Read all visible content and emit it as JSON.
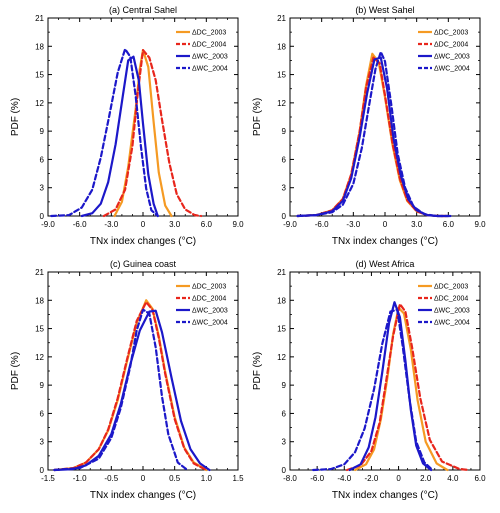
{
  "colors": {
    "DC_2003": "#f59a23",
    "DC_2004": "#e8261c",
    "WC_2003": "#1c18c9",
    "WC_2004": "#1c18c9"
  },
  "chart_data": [
    {
      "type": "line",
      "title": "(a) Central Sahel",
      "xlabel": "TNx index changes (°C)",
      "ylabel": "PDF (%)",
      "xlim": [
        -9,
        9
      ],
      "ylim": [
        0,
        21
      ],
      "xticks": [
        -9,
        -6,
        -3,
        0,
        3,
        6,
        9
      ],
      "xtick_labels": [
        "-9.0",
        "-6.0",
        "-3.0",
        "0",
        "3.0",
        "6.0",
        "9.0"
      ],
      "yticks": [
        0,
        3,
        6,
        9,
        12,
        15,
        18,
        21
      ],
      "legend_position": "top-right",
      "series": [
        {
          "name": "ΔDC_2003",
          "style": "solid",
          "color": "#f59a23",
          "x": [
            -2.7,
            -2.0,
            -1.4,
            -0.7,
            -0.3,
            0.0,
            0.5,
            1.0,
            1.5,
            2.1,
            2.7
          ],
          "y": [
            0,
            1.5,
            5.2,
            11.3,
            15.6,
            17.6,
            15.8,
            10.0,
            4.6,
            1.1,
            0
          ]
        },
        {
          "name": "ΔDC_2004",
          "style": "dash",
          "color": "#e8261c",
          "x": [
            -3.7,
            -2.6,
            -1.7,
            -1.0,
            -0.5,
            0.0,
            0.6,
            1.2,
            1.8,
            2.5,
            3.2,
            4.0,
            4.9,
            5.5
          ],
          "y": [
            0,
            0.7,
            2.8,
            7.4,
            13.0,
            17.6,
            16.8,
            14.4,
            10.2,
            5.6,
            2.3,
            0.7,
            0.1,
            0
          ]
        },
        {
          "name": "ΔWC_2003",
          "style": "solid",
          "color": "#1c18c9",
          "x": [
            -5.8,
            -4.8,
            -4.0,
            -3.3,
            -2.6,
            -1.9,
            -1.4,
            -0.9,
            -0.4,
            0.0,
            0.5,
            1.0,
            1.4
          ],
          "y": [
            0,
            0.3,
            1.3,
            3.6,
            7.6,
            12.8,
            16.5,
            16.9,
            14.4,
            9.8,
            4.4,
            1.3,
            0
          ]
        },
        {
          "name": "ΔWC_2004",
          "style": "dash",
          "color": "#1c18c9",
          "x": [
            -8.7,
            -7.0,
            -5.8,
            -4.8,
            -4.0,
            -3.2,
            -2.4,
            -1.7,
            -1.2,
            -0.7,
            -0.2,
            0.3,
            0.8,
            1.4
          ],
          "y": [
            0,
            0.1,
            0.9,
            2.8,
            6.2,
            10.6,
            15.2,
            17.7,
            16.9,
            12.8,
            7.4,
            2.9,
            0.6,
            0
          ]
        }
      ]
    },
    {
      "type": "line",
      "title": "(b) West Sahel",
      "xlabel": "TNx index changes (°C)",
      "ylabel": "PDF (%)",
      "xlim": [
        -9,
        9
      ],
      "ylim": [
        0,
        21
      ],
      "xticks": [
        -9,
        -6,
        -3,
        0,
        3,
        6,
        9
      ],
      "xtick_labels": [
        "-9.0",
        "-6.0",
        "-3.0",
        "0",
        "3.0",
        "6.0",
        "9.0"
      ],
      "yticks": [
        0,
        3,
        6,
        9,
        12,
        15,
        18,
        21
      ],
      "legend_position": "top-right",
      "series": [
        {
          "name": "ΔDC_2003",
          "style": "solid",
          "color": "#f59a23",
          "x": [
            -8.3,
            -6.5,
            -5.0,
            -4.0,
            -3.2,
            -2.4,
            -1.8,
            -1.2,
            -0.6,
            0.0,
            0.7,
            1.4,
            2.1,
            3.0,
            4.0,
            5.0,
            6.0
          ],
          "y": [
            0,
            0.1,
            0.6,
            1.8,
            4.4,
            9.0,
            13.8,
            17.2,
            16.3,
            12.6,
            7.6,
            3.8,
            1.6,
            0.5,
            0.1,
            0,
            0
          ]
        },
        {
          "name": "ΔDC_2004",
          "style": "dash",
          "color": "#e8261c",
          "x": [
            -8.3,
            -6.5,
            -5.0,
            -4.0,
            -3.2,
            -2.4,
            -1.8,
            -1.1,
            -0.5,
            0.0,
            0.7,
            1.4,
            2.1,
            3.0,
            4.0,
            5.0,
            6.0
          ],
          "y": [
            0,
            0.1,
            0.6,
            1.8,
            4.4,
            9.0,
            13.6,
            16.8,
            16.2,
            12.8,
            7.8,
            4.0,
            1.7,
            0.5,
            0.1,
            0,
            0
          ]
        },
        {
          "name": "ΔWC_2003",
          "style": "solid",
          "color": "#1c18c9",
          "x": [
            -8.3,
            -6.5,
            -5.0,
            -4.0,
            -3.2,
            -2.4,
            -1.7,
            -1.0,
            -0.4,
            0.2,
            0.8,
            1.5,
            2.2,
            3.0,
            4.0,
            5.0,
            6.2
          ],
          "y": [
            0,
            0.1,
            0.5,
            1.6,
            4.0,
            8.4,
            13.0,
            16.6,
            16.8,
            13.5,
            8.3,
            4.3,
            1.8,
            0.6,
            0.1,
            0,
            0
          ]
        },
        {
          "name": "ΔWC_2004",
          "style": "dash",
          "color": "#1c18c9",
          "x": [
            -8.3,
            -6.5,
            -5.0,
            -4.0,
            -3.0,
            -2.2,
            -1.5,
            -0.9,
            -0.4,
            0.0,
            0.6,
            1.2,
            1.9,
            2.7,
            3.7,
            4.8,
            6.0
          ],
          "y": [
            0,
            0.1,
            0.4,
            1.2,
            3.4,
            7.2,
            11.8,
            15.6,
            17.4,
            16.4,
            11.8,
            6.6,
            3.0,
            1.0,
            0.2,
            0,
            0
          ]
        }
      ]
    },
    {
      "type": "line",
      "title": "(c) Guinea coast",
      "xlabel": "TNx index changes (°C)",
      "ylabel": "PDF (%)",
      "xlim": [
        -1.5,
        1.5
      ],
      "ylim": [
        0,
        21
      ],
      "xticks": [
        -1.5,
        -1.0,
        -0.5,
        0,
        0.5,
        1.0,
        1.5
      ],
      "xtick_labels": [
        "-1.5",
        "-1.0",
        "-0.5",
        "0",
        "0.5",
        "1.0",
        "1.5"
      ],
      "yticks": [
        0,
        3,
        6,
        9,
        12,
        15,
        18,
        21
      ],
      "legend_position": "top-right",
      "series": [
        {
          "name": "ΔDC_2003",
          "style": "solid",
          "color": "#f59a23",
          "x": [
            -1.4,
            -1.1,
            -0.9,
            -0.7,
            -0.55,
            -0.4,
            -0.25,
            -0.1,
            0.05,
            0.15,
            0.25,
            0.35,
            0.5,
            0.65,
            0.8,
            1.0
          ],
          "y": [
            0,
            0.2,
            0.8,
            2.2,
            4.2,
            7.4,
            11.6,
            15.6,
            18.0,
            17.1,
            14.2,
            10.4,
            5.6,
            2.4,
            0.8,
            0
          ]
        },
        {
          "name": "ΔDC_2004",
          "style": "dash",
          "color": "#e8261c",
          "x": [
            -1.4,
            -1.1,
            -0.9,
            -0.7,
            -0.55,
            -0.4,
            -0.25,
            -0.1,
            0.05,
            0.15,
            0.25,
            0.35,
            0.5,
            0.65,
            0.8,
            1.0
          ],
          "y": [
            0,
            0.2,
            0.8,
            2.2,
            4.3,
            7.6,
            11.8,
            15.8,
            17.8,
            17.0,
            14.0,
            10.2,
            5.4,
            2.3,
            0.7,
            0
          ]
        },
        {
          "name": "ΔWC_2003",
          "style": "solid",
          "color": "#1c18c9",
          "x": [
            -1.4,
            -1.1,
            -0.9,
            -0.7,
            -0.5,
            -0.35,
            -0.2,
            -0.05,
            0.1,
            0.2,
            0.3,
            0.45,
            0.6,
            0.75,
            0.9,
            1.05
          ],
          "y": [
            0,
            0.1,
            0.5,
            1.5,
            3.8,
            7.0,
            11.2,
            14.8,
            16.8,
            16.9,
            14.6,
            9.8,
            5.2,
            2.2,
            0.7,
            0
          ]
        },
        {
          "name": "ΔWC_2004",
          "style": "dash",
          "color": "#1c18c9",
          "x": [
            -1.4,
            -1.0,
            -0.7,
            -0.5,
            -0.35,
            -0.2,
            -0.1,
            0.0,
            0.1,
            0.2,
            0.3,
            0.4,
            0.55,
            0.7
          ],
          "y": [
            0,
            0.2,
            1.2,
            3.4,
            6.6,
            11.0,
            14.8,
            17.0,
            16.6,
            13.0,
            7.8,
            3.8,
            0.8,
            0
          ]
        }
      ]
    },
    {
      "type": "line",
      "title": "(d) West Africa",
      "xlabel": "TNx index changes (°C)",
      "ylabel": "PDF (%)",
      "xlim": [
        -8,
        6
      ],
      "ylim": [
        0,
        21
      ],
      "xticks": [
        -8,
        -6,
        -4,
        -2,
        0,
        2,
        4,
        6
      ],
      "xtick_labels": [
        "-8.0",
        "-6.0",
        "-4.0",
        "-2.0",
        "0",
        "2.0",
        "4.0",
        "6.0"
      ],
      "yticks": [
        0,
        3,
        6,
        9,
        12,
        15,
        18,
        21
      ],
      "legend_position": "top-right",
      "series": [
        {
          "name": "ΔDC_2003",
          "style": "solid",
          "color": "#f59a23",
          "x": [
            -3.2,
            -2.4,
            -1.8,
            -1.3,
            -0.8,
            -0.4,
            0.0,
            0.4,
            0.9,
            1.4,
            2.0,
            2.8,
            3.6
          ],
          "y": [
            0,
            0.6,
            2.2,
            5.4,
            10.0,
            14.4,
            17.2,
            16.6,
            12.8,
            7.4,
            3.0,
            0.7,
            0
          ]
        },
        {
          "name": "ΔDC_2004",
          "style": "dash",
          "color": "#e8261c",
          "x": [
            -3.8,
            -2.8,
            -2.0,
            -1.4,
            -0.9,
            -0.4,
            0.1,
            0.5,
            1.0,
            1.6,
            2.3,
            3.2,
            4.5,
            5.2
          ],
          "y": [
            0,
            0.5,
            2.0,
            5.0,
            9.6,
            14.2,
            17.6,
            16.8,
            13.0,
            7.6,
            3.2,
            0.9,
            0.1,
            0
          ]
        },
        {
          "name": "ΔWC_2003",
          "style": "solid",
          "color": "#1c18c9",
          "x": [
            -3.6,
            -2.8,
            -2.2,
            -1.7,
            -1.2,
            -0.7,
            -0.3,
            0.1,
            0.5,
            0.9,
            1.3,
            1.8,
            2.4
          ],
          "y": [
            0,
            0.6,
            2.4,
            5.6,
            10.4,
            15.6,
            17.8,
            16.2,
            11.6,
            6.4,
            2.6,
            0.7,
            0
          ]
        },
        {
          "name": "ΔWC_2004",
          "style": "dash",
          "color": "#1c18c9",
          "x": [
            -6.3,
            -5.0,
            -4.0,
            -3.2,
            -2.5,
            -1.8,
            -1.2,
            -0.6,
            -0.1,
            0.3,
            0.8,
            1.3,
            1.9,
            2.5
          ],
          "y": [
            0,
            0.1,
            0.6,
            1.9,
            4.4,
            8.6,
            13.4,
            16.8,
            17.0,
            13.2,
            7.6,
            3.0,
            0.8,
            0
          ]
        }
      ]
    }
  ]
}
